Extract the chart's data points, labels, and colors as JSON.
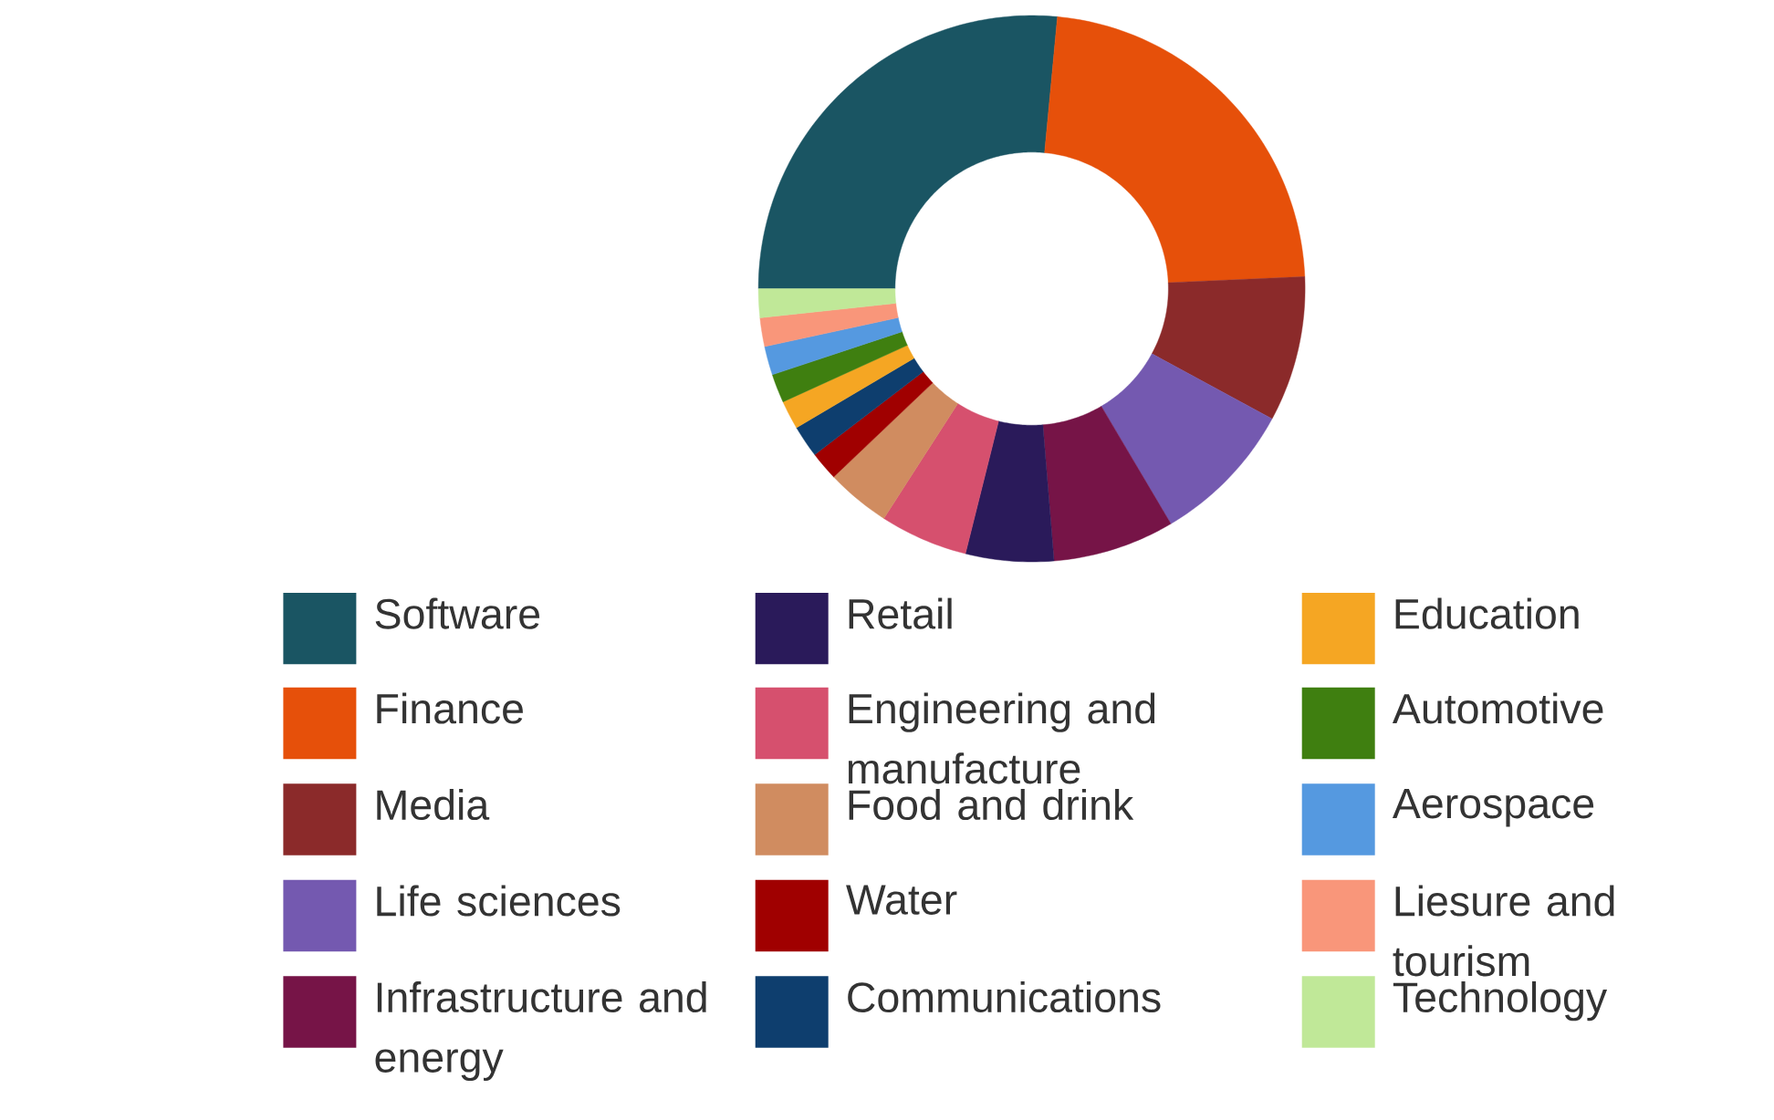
{
  "chart_data": {
    "type": "donut",
    "categories": [
      "Software",
      "Finance",
      "Media",
      "Life sciences",
      "Infrastructure and energy",
      "Retail",
      "Engineering and manufacture",
      "Food and drink",
      "Water",
      "Communications",
      "Education",
      "Automotive",
      "Aerospace",
      "Liesure and tourism",
      "Technology"
    ],
    "values": [
      26.5,
      22.8,
      8.6,
      8.6,
      7.2,
      5.2,
      5.2,
      3.8,
      1.7,
      1.9,
      1.7,
      1.7,
      1.7,
      1.7,
      1.7
    ],
    "colors": [
      "#1a5563",
      "#e6500a",
      "#8b2a2a",
      "#7459b0",
      "#761447",
      "#2a1a5a",
      "#d6506e",
      "#d08c60",
      "#a00000",
      "#0e3e6e",
      "#f5a623",
      "#3f7f10",
      "#5599e0",
      "#f9967a",
      "#c0e898"
    ],
    "legend": "bottom"
  }
}
